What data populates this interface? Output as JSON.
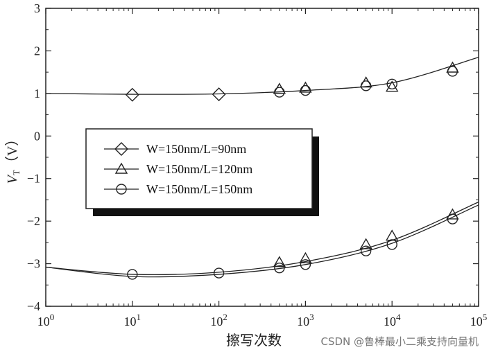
{
  "chart_data": {
    "type": "scatter",
    "title": "",
    "xlabel": "擦写次数",
    "ylabel": {
      "main": "V",
      "sub": "T",
      "unit": "（V）"
    },
    "xscale": "log",
    "xlim": [
      1,
      100000
    ],
    "ylim": [
      -4,
      3
    ],
    "x_ticks": [
      {
        "value": 1,
        "base": "10",
        "exp": "0"
      },
      {
        "value": 10,
        "base": "10",
        "exp": "1"
      },
      {
        "value": 100,
        "base": "10",
        "exp": "2"
      },
      {
        "value": 1000,
        "base": "10",
        "exp": "3"
      },
      {
        "value": 10000,
        "base": "10",
        "exp": "4"
      },
      {
        "value": 100000,
        "base": "10",
        "exp": "5"
      }
    ],
    "y_ticks": [
      {
        "value": 3,
        "label": "3"
      },
      {
        "value": 2,
        "label": "2"
      },
      {
        "value": 1,
        "label": "1"
      },
      {
        "value": 0,
        "label": "0"
      },
      {
        "value": -1,
        "label": "−1"
      },
      {
        "value": -2,
        "label": "−2"
      },
      {
        "value": -3,
        "label": "−3"
      },
      {
        "value": -4,
        "label": "−4"
      }
    ],
    "grid": false,
    "legend_position": "center-left",
    "series": [
      {
        "name": "W=150nm/L=90nm",
        "marker": "diamond",
        "points": [
          [
            10,
            0.97
          ],
          [
            100,
            0.98
          ]
        ]
      },
      {
        "name": "W=150nm/L=120nm",
        "marker": "triangle",
        "points": [
          [
            500,
            1.1
          ],
          [
            1000,
            1.13
          ],
          [
            5000,
            1.25
          ],
          [
            10000,
            1.15
          ],
          [
            50000,
            1.6
          ],
          [
            500,
            -2.97
          ],
          [
            1000,
            -2.88
          ],
          [
            5000,
            -2.55
          ],
          [
            10000,
            -2.35
          ],
          [
            50000,
            -1.85
          ]
        ]
      },
      {
        "name": "W=150nm/L=150nm",
        "marker": "circle",
        "points": [
          [
            500,
            1.03
          ],
          [
            1000,
            1.07
          ],
          [
            5000,
            1.18
          ],
          [
            10000,
            1.22
          ],
          [
            50000,
            1.52
          ],
          [
            10,
            -3.25
          ],
          [
            100,
            -3.22
          ],
          [
            500,
            -3.1
          ],
          [
            1000,
            -3.02
          ],
          [
            5000,
            -2.7
          ],
          [
            10000,
            -2.55
          ],
          [
            50000,
            -1.95
          ]
        ]
      }
    ],
    "fit_curves": [
      [
        [
          1,
          1.0
        ],
        [
          10,
          0.98
        ],
        [
          100,
          0.99
        ],
        [
          1000,
          1.07
        ],
        [
          10000,
          1.25
        ],
        [
          100000,
          1.85
        ]
      ],
      [
        [
          1,
          -3.08
        ],
        [
          10,
          -3.25
        ],
        [
          100,
          -3.2
        ],
        [
          1000,
          -2.95
        ],
        [
          10000,
          -2.45
        ],
        [
          100000,
          -1.55
        ]
      ],
      [
        [
          1,
          -3.08
        ],
        [
          10,
          -3.3
        ],
        [
          100,
          -3.25
        ],
        [
          1000,
          -3.02
        ],
        [
          10000,
          -2.52
        ],
        [
          100000,
          -1.62
        ]
      ]
    ]
  },
  "watermark": "CSDN @鲁棒最小二乘支持向量机"
}
